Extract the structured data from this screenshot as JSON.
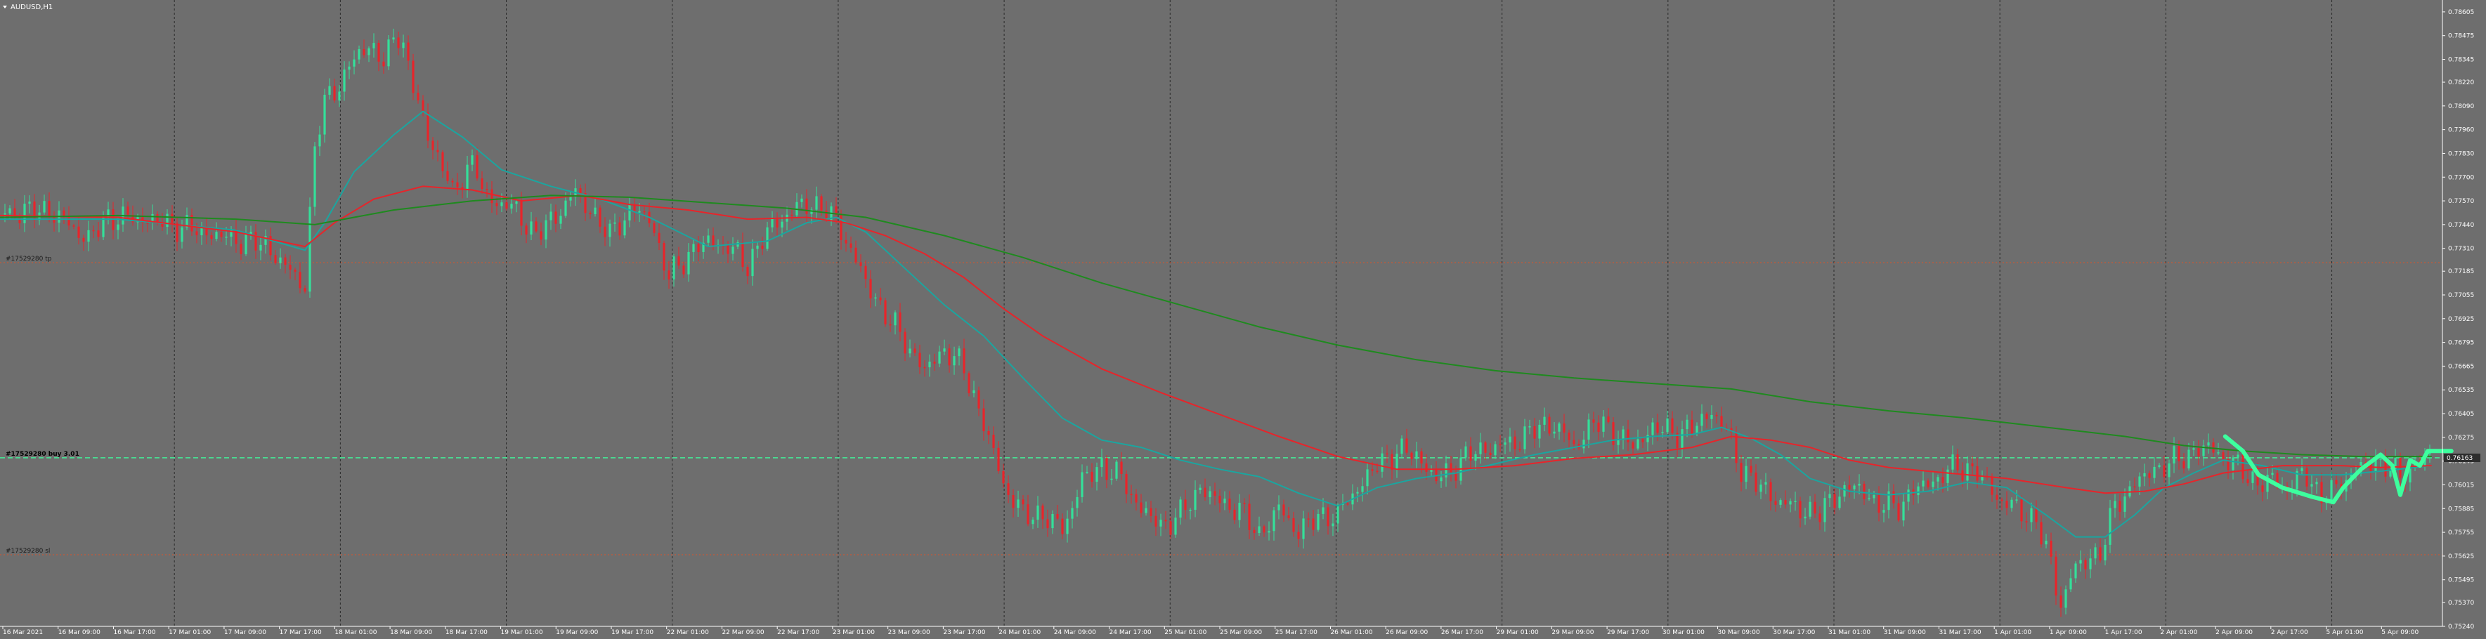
{
  "window": {
    "title": "AUDUSD,H1",
    "menu_icon": "triangle-down-icon"
  },
  "colors": {
    "background": "#6e6e6e",
    "grid": "#2a2a2a",
    "bull": "#34e09a",
    "bear": "#e8242a",
    "ma_fast": "#1aa6a0",
    "ma_mid": "#e8242a",
    "ma_slow": "#1f8a1f",
    "equity": "#3dff9e",
    "order_line": "#3dff9e",
    "sl_tp_line": "#d9542a",
    "price_tag": "#2d2d2d"
  },
  "orders": {
    "entry": {
      "label": "#17529280 buy 3.01",
      "price": 0.76163
    },
    "tp": {
      "label": "#17529280 tp",
      "price": 0.77232
    },
    "sl": {
      "label": "#17529280 sl",
      "price": 0.75632
    }
  },
  "current_price_tag": "0.76163",
  "chart_data": {
    "type": "candlestick",
    "title": "AUDUSD,H1",
    "symbol": "AUDUSD",
    "timeframe": "H1",
    "ylim": [
      0.7524,
      0.7867
    ],
    "y_ticks": [
      "0.78605",
      "0.78475",
      "0.78345",
      "0.78220",
      "0.78090",
      "0.77960",
      "0.77830",
      "0.77700",
      "0.77570",
      "0.77440",
      "0.77310",
      "0.77185",
      "0.77055",
      "0.76925",
      "0.76795",
      "0.76665",
      "0.76535",
      "0.76405",
      "0.76275",
      "0.76145",
      "0.76015",
      "0.75885",
      "0.75755",
      "0.75625",
      "0.75495",
      "0.75370",
      "0.75240"
    ],
    "x_ticks": [
      "16 Mar 2021",
      "16 Mar 09:00",
      "16 Mar 17:00",
      "17 Mar 01:00",
      "17 Mar 09:00",
      "17 Mar 17:00",
      "18 Mar 01:00",
      "18 Mar 09:00",
      "18 Mar 17:00",
      "19 Mar 01:00",
      "19 Mar 09:00",
      "19 Mar 17:00",
      "22 Mar 01:00",
      "22 Mar 09:00",
      "22 Mar 17:00",
      "23 Mar 01:00",
      "23 Mar 09:00",
      "23 Mar 17:00",
      "24 Mar 01:00",
      "24 Mar 09:00",
      "24 Mar 17:00",
      "25 Mar 01:00",
      "25 Mar 09:00",
      "25 Mar 17:00",
      "26 Mar 01:00",
      "26 Mar 09:00",
      "26 Mar 17:00",
      "29 Mar 01:00",
      "29 Mar 09:00",
      "29 Mar 17:00",
      "30 Mar 01:00",
      "30 Mar 09:00",
      "30 Mar 17:00",
      "31 Mar 01:00",
      "31 Mar 09:00",
      "31 Mar 17:00",
      "1 Apr 01:00",
      "1 Apr 09:00",
      "1 Apr 17:00",
      "2 Apr 01:00",
      "2 Apr 09:00",
      "2 Apr 17:00",
      "5 Apr 01:00",
      "5 Apr 09:00"
    ],
    "grid": true,
    "close_path": [
      [
        0,
        0.775
      ],
      [
        25,
        0.7752
      ],
      [
        45,
        0.7736
      ],
      [
        55,
        0.7748
      ],
      [
        75,
        0.7747
      ],
      [
        95,
        0.7742
      ],
      [
        115,
        0.7737
      ],
      [
        135,
        0.7733
      ],
      [
        150,
        0.7715
      ],
      [
        155,
        0.7712
      ],
      [
        160,
        0.7785
      ],
      [
        165,
        0.7812
      ],
      [
        172,
        0.782
      ],
      [
        178,
        0.783
      ],
      [
        182,
        0.7838
      ],
      [
        188,
        0.7843
      ],
      [
        194,
        0.7832
      ],
      [
        199,
        0.7842
      ],
      [
        204,
        0.7852
      ],
      [
        209,
        0.7818
      ],
      [
        213,
        0.7812
      ],
      [
        218,
        0.779
      ],
      [
        224,
        0.7779
      ],
      [
        230,
        0.776
      ],
      [
        235,
        0.7772
      ],
      [
        241,
        0.7778
      ],
      [
        246,
        0.776
      ],
      [
        252,
        0.7757
      ],
      [
        262,
        0.7752
      ],
      [
        272,
        0.7738
      ],
      [
        282,
        0.7748
      ],
      [
        292,
        0.7762
      ],
      [
        300,
        0.7752
      ],
      [
        310,
        0.7738
      ],
      [
        320,
        0.7752
      ],
      [
        330,
        0.7748
      ],
      [
        340,
        0.7715
      ],
      [
        350,
        0.7728
      ],
      [
        360,
        0.7735
      ],
      [
        370,
        0.7732
      ],
      [
        380,
        0.7722
      ],
      [
        390,
        0.774
      ],
      [
        400,
        0.775
      ],
      [
        410,
        0.7755
      ],
      [
        418,
        0.7754
      ],
      [
        425,
        0.7745
      ],
      [
        432,
        0.7732
      ],
      [
        440,
        0.7712
      ],
      [
        450,
        0.7695
      ],
      [
        460,
        0.768
      ],
      [
        470,
        0.7664
      ],
      [
        480,
        0.7676
      ],
      [
        490,
        0.7665
      ],
      [
        500,
        0.7635
      ],
      [
        510,
        0.7602
      ],
      [
        520,
        0.7585
      ],
      [
        530,
        0.7585
      ],
      [
        540,
        0.7577
      ],
      [
        550,
        0.7604
      ],
      [
        560,
        0.7612
      ],
      [
        570,
        0.7605
      ],
      [
        580,
        0.7588
      ],
      [
        590,
        0.7579
      ],
      [
        600,
        0.7585
      ],
      [
        610,
        0.76
      ],
      [
        620,
        0.7592
      ],
      [
        630,
        0.7588
      ],
      [
        640,
        0.7574
      ],
      [
        650,
        0.7588
      ],
      [
        660,
        0.7576
      ],
      [
        670,
        0.7584
      ],
      [
        680,
        0.7585
      ],
      [
        690,
        0.76
      ],
      [
        700,
        0.7612
      ],
      [
        710,
        0.762
      ],
      [
        720,
        0.7618
      ],
      [
        730,
        0.7604
      ],
      [
        740,
        0.7612
      ],
      [
        750,
        0.762
      ],
      [
        760,
        0.7622
      ],
      [
        770,
        0.7625
      ],
      [
        780,
        0.7632
      ],
      [
        790,
        0.7635
      ],
      [
        800,
        0.7622
      ],
      [
        810,
        0.7636
      ],
      [
        820,
        0.7631
      ],
      [
        830,
        0.7622
      ],
      [
        840,
        0.7633
      ],
      [
        850,
        0.763
      ],
      [
        860,
        0.7632
      ],
      [
        870,
        0.7642
      ],
      [
        878,
        0.763
      ],
      [
        885,
        0.761
      ],
      [
        895,
        0.76
      ],
      [
        905,
        0.7592
      ],
      [
        915,
        0.7588
      ],
      [
        925,
        0.7586
      ],
      [
        935,
        0.7598
      ],
      [
        945,
        0.76
      ],
      [
        955,
        0.759
      ],
      [
        965,
        0.759
      ],
      [
        975,
        0.76
      ],
      [
        985,
        0.7605
      ],
      [
        995,
        0.7612
      ],
      [
        1005,
        0.7608
      ],
      [
        1015,
        0.7595
      ],
      [
        1025,
        0.7588
      ],
      [
        1035,
        0.7582
      ],
      [
        1042,
        0.756
      ],
      [
        1047,
        0.7535
      ],
      [
        1053,
        0.7553
      ],
      [
        1060,
        0.756
      ],
      [
        1068,
        0.7565
      ],
      [
        1075,
        0.759
      ],
      [
        1085,
        0.7602
      ],
      [
        1095,
        0.761
      ],
      [
        1105,
        0.7614
      ],
      [
        1115,
        0.762
      ],
      [
        1123,
        0.7622
      ],
      [
        1131,
        0.7616
      ],
      [
        1139,
        0.761
      ],
      [
        1147,
        0.7602
      ],
      [
        1155,
        0.7604
      ],
      [
        1163,
        0.76
      ],
      [
        1171,
        0.7608
      ],
      [
        1179,
        0.7596
      ],
      [
        1187,
        0.7598
      ],
      [
        1195,
        0.7608
      ],
      [
        1203,
        0.7612
      ],
      [
        1212,
        0.7614
      ],
      [
        1220,
        0.7605
      ],
      [
        1228,
        0.7614
      ],
      [
        1236,
        0.7618
      ]
    ],
    "indicators": [
      {
        "name": "",
        "color": "#1aa6a0",
        "points": [
          [
            0,
            0.7747
          ],
          [
            60,
            0.7747
          ],
          [
            120,
            0.7741
          ],
          [
            155,
            0.773
          ],
          [
            165,
            0.7745
          ],
          [
            180,
            0.7773
          ],
          [
            200,
            0.7793
          ],
          [
            215,
            0.7806
          ],
          [
            235,
            0.7792
          ],
          [
            255,
            0.7774
          ],
          [
            280,
            0.7765
          ],
          [
            305,
            0.7758
          ],
          [
            330,
            0.7748
          ],
          [
            360,
            0.7732
          ],
          [
            390,
            0.7735
          ],
          [
            410,
            0.7745
          ],
          [
            425,
            0.7748
          ],
          [
            440,
            0.774
          ],
          [
            460,
            0.772
          ],
          [
            480,
            0.77
          ],
          [
            500,
            0.7683
          ],
          [
            520,
            0.766
          ],
          [
            540,
            0.7638
          ],
          [
            560,
            0.7626
          ],
          [
            580,
            0.7622
          ],
          [
            600,
            0.7615
          ],
          [
            620,
            0.761
          ],
          [
            640,
            0.7606
          ],
          [
            660,
            0.7597
          ],
          [
            680,
            0.759
          ],
          [
            700,
            0.76
          ],
          [
            720,
            0.7605
          ],
          [
            740,
            0.7608
          ],
          [
            760,
            0.7613
          ],
          [
            780,
            0.7618
          ],
          [
            800,
            0.7622
          ],
          [
            820,
            0.7626
          ],
          [
            840,
            0.7628
          ],
          [
            860,
            0.7629
          ],
          [
            875,
            0.7633
          ],
          [
            890,
            0.7627
          ],
          [
            905,
            0.7618
          ],
          [
            920,
            0.7605
          ],
          [
            940,
            0.7598
          ],
          [
            960,
            0.7596
          ],
          [
            980,
            0.7598
          ],
          [
            1000,
            0.7603
          ],
          [
            1020,
            0.76
          ],
          [
            1040,
            0.7585
          ],
          [
            1055,
            0.7573
          ],
          [
            1070,
            0.7573
          ],
          [
            1085,
            0.7585
          ],
          [
            1100,
            0.76
          ],
          [
            1115,
            0.7608
          ],
          [
            1130,
            0.7615
          ],
          [
            1150,
            0.7612
          ],
          [
            1170,
            0.7607
          ],
          [
            1190,
            0.7607
          ],
          [
            1210,
            0.7609
          ],
          [
            1236,
            0.7612
          ]
        ]
      },
      {
        "name": "",
        "color": "#e8242a",
        "points": [
          [
            0,
            0.7749
          ],
          [
            60,
            0.7748
          ],
          [
            120,
            0.774
          ],
          [
            155,
            0.7732
          ],
          [
            170,
            0.7745
          ],
          [
            190,
            0.7758
          ],
          [
            215,
            0.7765
          ],
          [
            240,
            0.7763
          ],
          [
            265,
            0.7757
          ],
          [
            295,
            0.776
          ],
          [
            320,
            0.7755
          ],
          [
            350,
            0.7752
          ],
          [
            380,
            0.7747
          ],
          [
            410,
            0.7748
          ],
          [
            430,
            0.7745
          ],
          [
            450,
            0.7738
          ],
          [
            470,
            0.7728
          ],
          [
            490,
            0.7715
          ],
          [
            510,
            0.7698
          ],
          [
            530,
            0.7683
          ],
          [
            560,
            0.7665
          ],
          [
            590,
            0.7652
          ],
          [
            620,
            0.764
          ],
          [
            650,
            0.7628
          ],
          [
            680,
            0.7617
          ],
          [
            710,
            0.761
          ],
          [
            740,
            0.761
          ],
          [
            770,
            0.7612
          ],
          [
            800,
            0.7616
          ],
          [
            830,
            0.7618
          ],
          [
            860,
            0.7622
          ],
          [
            880,
            0.7628
          ],
          [
            900,
            0.7626
          ],
          [
            920,
            0.7622
          ],
          [
            940,
            0.7615
          ],
          [
            960,
            0.7611
          ],
          [
            990,
            0.7608
          ],
          [
            1020,
            0.7605
          ],
          [
            1050,
            0.76
          ],
          [
            1070,
            0.7597
          ],
          [
            1090,
            0.7598
          ],
          [
            1110,
            0.7602
          ],
          [
            1130,
            0.7608
          ],
          [
            1160,
            0.7612
          ],
          [
            1190,
            0.7612
          ],
          [
            1210,
            0.7611
          ],
          [
            1236,
            0.7612
          ]
        ]
      },
      {
        "name": "",
        "color": "#1f8a1f",
        "points": [
          [
            0,
            0.7748
          ],
          [
            60,
            0.7749
          ],
          [
            120,
            0.7747
          ],
          [
            160,
            0.7744
          ],
          [
            200,
            0.7752
          ],
          [
            240,
            0.7757
          ],
          [
            280,
            0.776
          ],
          [
            320,
            0.7759
          ],
          [
            360,
            0.7756
          ],
          [
            400,
            0.7753
          ],
          [
            440,
            0.7748
          ],
          [
            480,
            0.7738
          ],
          [
            520,
            0.7726
          ],
          [
            560,
            0.7712
          ],
          [
            600,
            0.77
          ],
          [
            640,
            0.7688
          ],
          [
            680,
            0.7678
          ],
          [
            720,
            0.767
          ],
          [
            760,
            0.7664
          ],
          [
            800,
            0.766
          ],
          [
            840,
            0.7657
          ],
          [
            880,
            0.7654
          ],
          [
            920,
            0.7647
          ],
          [
            960,
            0.7642
          ],
          [
            1000,
            0.7638
          ],
          [
            1040,
            0.7633
          ],
          [
            1080,
            0.7628
          ],
          [
            1110,
            0.7623
          ],
          [
            1140,
            0.762
          ],
          [
            1170,
            0.7618
          ],
          [
            1200,
            0.7617
          ],
          [
            1236,
            0.7617
          ]
        ]
      }
    ],
    "equity_path": [
      [
        1131,
        0.7628
      ],
      [
        1140,
        0.762
      ],
      [
        1148,
        0.7607
      ],
      [
        1160,
        0.76
      ],
      [
        1175,
        0.7595
      ],
      [
        1186,
        0.7592
      ],
      [
        1191,
        0.76
      ],
      [
        1200,
        0.761
      ],
      [
        1210,
        0.7618
      ],
      [
        1216,
        0.7612
      ],
      [
        1220,
        0.7596
      ],
      [
        1225,
        0.7615
      ],
      [
        1230,
        0.7612
      ],
      [
        1234,
        0.762
      ],
      [
        1246,
        0.762
      ]
    ]
  }
}
